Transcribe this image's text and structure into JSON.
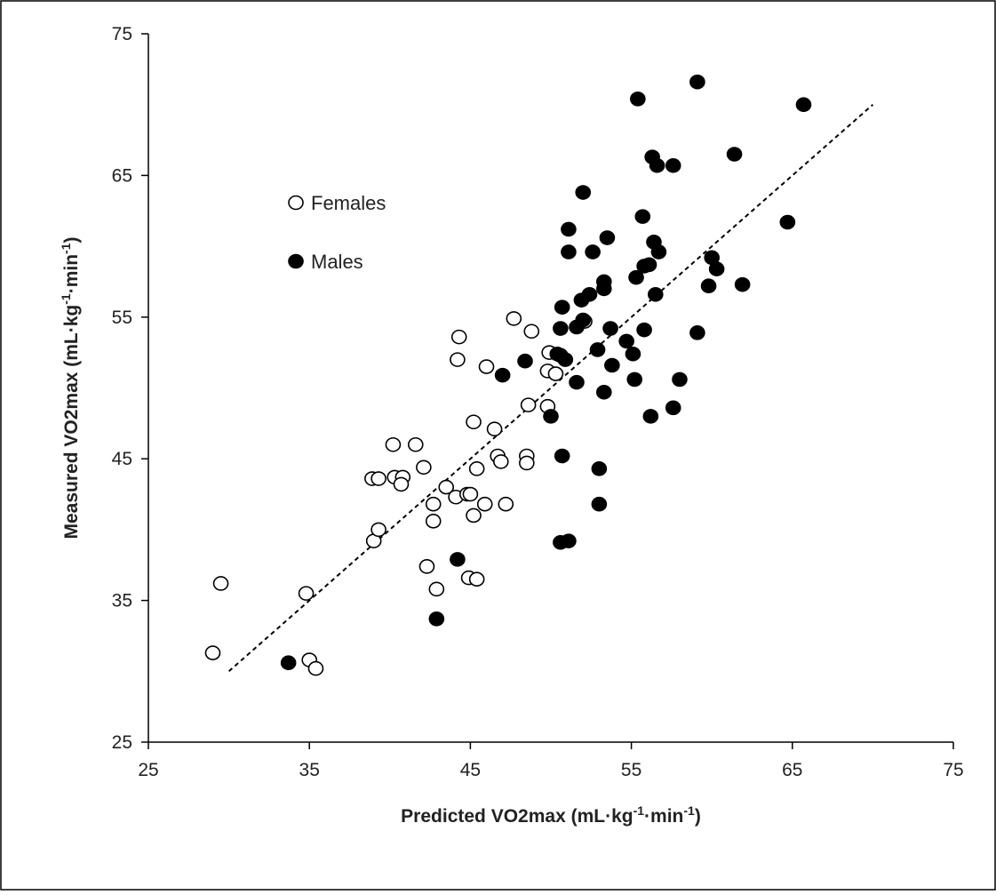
{
  "chart_data": {
    "type": "scatter",
    "xlabel": {
      "main": "Predicted VO2max (mL·kg",
      "sup1": "-1",
      "mid": "·min",
      "sup2": "-1",
      "end": ")"
    },
    "ylabel": {
      "main": "Measured VO2max (mL·kg",
      "sup1": "-1",
      "mid": "·min",
      "sup2": "-1",
      "end": ")"
    },
    "xlim": [
      25,
      75
    ],
    "ylim": [
      25,
      75
    ],
    "xticks": [
      "25",
      "35",
      "45",
      "55",
      "65",
      "75"
    ],
    "yticks": [
      "25",
      "35",
      "45",
      "55",
      "65",
      "75"
    ],
    "grid": false,
    "legend_position": "top-left",
    "trend_line": {
      "style": "dashed",
      "x": [
        30,
        70
      ],
      "y": [
        30,
        70
      ]
    },
    "series": [
      {
        "name": "Females",
        "marker": "open-circle",
        "color": "#000000",
        "points": [
          [
            29.0,
            31.3
          ],
          [
            29.5,
            36.2
          ],
          [
            35.0,
            30.8
          ],
          [
            35.4,
            30.2
          ],
          [
            34.8,
            35.5
          ],
          [
            39.0,
            39.2
          ],
          [
            39.3,
            40.0
          ],
          [
            38.9,
            43.6
          ],
          [
            39.3,
            43.6
          ],
          [
            40.3,
            43.7
          ],
          [
            40.8,
            43.7
          ],
          [
            40.7,
            43.2
          ],
          [
            40.2,
            46.0
          ],
          [
            41.6,
            46.0
          ],
          [
            42.1,
            44.4
          ],
          [
            43.5,
            43.0
          ],
          [
            42.7,
            41.8
          ],
          [
            42.7,
            40.6
          ],
          [
            42.3,
            37.4
          ],
          [
            42.9,
            35.8
          ],
          [
            44.1,
            42.3
          ],
          [
            44.8,
            42.5
          ],
          [
            45.0,
            42.5
          ],
          [
            45.2,
            41.0
          ],
          [
            45.9,
            41.8
          ],
          [
            47.2,
            41.8
          ],
          [
            44.9,
            36.6
          ],
          [
            45.4,
            36.5
          ],
          [
            44.2,
            52.0
          ],
          [
            44.3,
            53.6
          ],
          [
            45.2,
            47.6
          ],
          [
            45.4,
            44.3
          ],
          [
            46.7,
            45.2
          ],
          [
            46.9,
            44.8
          ],
          [
            46.5,
            47.1
          ],
          [
            48.5,
            45.2
          ],
          [
            48.5,
            44.7
          ],
          [
            48.6,
            48.8
          ],
          [
            48.8,
            54.0
          ],
          [
            47.7,
            54.9
          ],
          [
            46.0,
            51.5
          ],
          [
            49.8,
            48.7
          ],
          [
            49.8,
            51.2
          ],
          [
            50.3,
            51.0
          ],
          [
            49.9,
            52.5
          ],
          [
            52.1,
            54.7
          ]
        ]
      },
      {
        "name": "Males",
        "marker": "filled-circle",
        "color": "#000000",
        "points": [
          [
            33.7,
            30.6
          ],
          [
            42.9,
            33.7
          ],
          [
            44.2,
            37.9
          ],
          [
            47.0,
            50.9
          ],
          [
            48.4,
            51.9
          ],
          [
            50.0,
            48.0
          ],
          [
            50.4,
            52.4
          ],
          [
            50.6,
            52.3
          ],
          [
            50.9,
            52.0
          ],
          [
            50.6,
            54.2
          ],
          [
            50.7,
            55.7
          ],
          [
            50.7,
            45.2
          ],
          [
            50.6,
            39.1
          ],
          [
            51.1,
            39.2
          ],
          [
            51.1,
            61.2
          ],
          [
            51.1,
            59.6
          ],
          [
            51.6,
            54.3
          ],
          [
            51.6,
            50.4
          ],
          [
            51.9,
            56.2
          ],
          [
            52.0,
            54.8
          ],
          [
            52.0,
            63.8
          ],
          [
            52.4,
            56.6
          ],
          [
            52.6,
            59.6
          ],
          [
            52.9,
            52.7
          ],
          [
            53.0,
            44.3
          ],
          [
            53.0,
            41.8
          ],
          [
            53.3,
            57.0
          ],
          [
            53.3,
            57.5
          ],
          [
            53.3,
            49.7
          ],
          [
            53.5,
            60.6
          ],
          [
            53.7,
            54.2
          ],
          [
            53.8,
            51.6
          ],
          [
            54.7,
            53.3
          ],
          [
            55.1,
            52.4
          ],
          [
            55.2,
            50.6
          ],
          [
            55.3,
            57.8
          ],
          [
            55.4,
            70.4
          ],
          [
            55.7,
            62.1
          ],
          [
            55.8,
            58.6
          ],
          [
            55.8,
            54.1
          ],
          [
            56.1,
            58.7
          ],
          [
            56.2,
            48.0
          ],
          [
            56.3,
            66.3
          ],
          [
            56.4,
            60.3
          ],
          [
            56.5,
            56.6
          ],
          [
            56.6,
            65.7
          ],
          [
            56.7,
            59.6
          ],
          [
            57.6,
            65.7
          ],
          [
            57.6,
            48.6
          ],
          [
            58.0,
            50.6
          ],
          [
            59.1,
            71.6
          ],
          [
            59.1,
            53.9
          ],
          [
            59.8,
            57.2
          ],
          [
            60.0,
            59.2
          ],
          [
            60.3,
            58.4
          ],
          [
            61.4,
            66.5
          ],
          [
            61.9,
            57.3
          ],
          [
            64.7,
            61.7
          ],
          [
            65.7,
            70.0
          ]
        ]
      }
    ]
  }
}
